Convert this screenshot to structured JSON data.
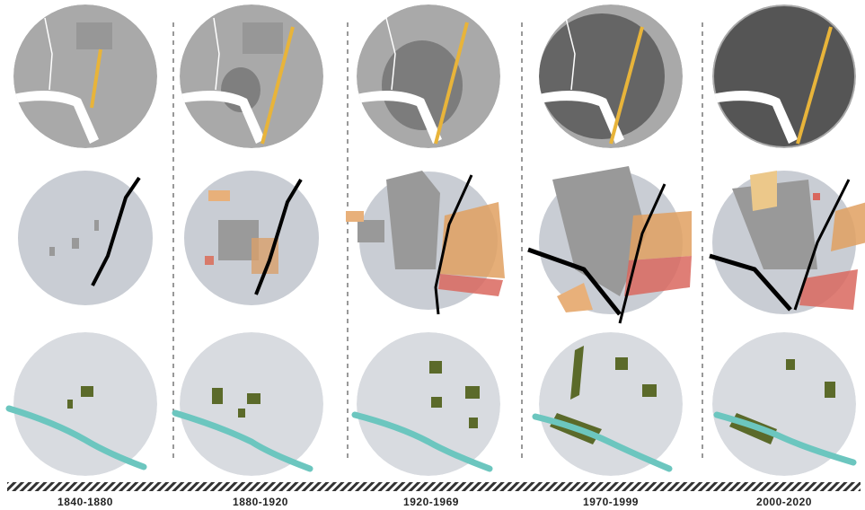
{
  "periods": [
    "1840-1880",
    "1880-1920",
    "1920-1969",
    "1970-1999",
    "2000-2020"
  ]
}
